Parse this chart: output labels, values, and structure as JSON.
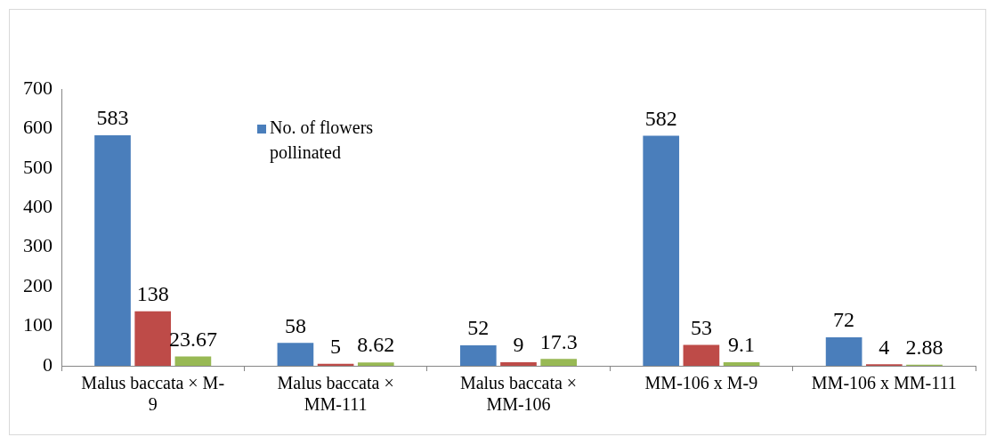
{
  "chart_data": {
    "type": "bar",
    "categories": [
      "Malus baccata × M-9",
      "Malus baccata × MM-111",
      "Malus baccata × MM-106",
      "MM-106 x M-9",
      "MM-106 x MM-111"
    ],
    "series": [
      {
        "name": "No. of flowers pollinated",
        "color": "#4a7ebb",
        "values": [
          583,
          58,
          52,
          582,
          72
        ]
      },
      {
        "color": "#be4b48",
        "values": [
          138,
          5,
          9,
          53,
          4
        ]
      },
      {
        "color": "#98b954",
        "values": [
          23.67,
          8.62,
          17.3,
          9.1,
          2.88
        ]
      }
    ],
    "ylim": [
      0,
      700
    ],
    "yticks": [
      0,
      100,
      200,
      300,
      400,
      500,
      600,
      700
    ],
    "grid": false,
    "legend": "top left",
    "data_labels": true
  }
}
